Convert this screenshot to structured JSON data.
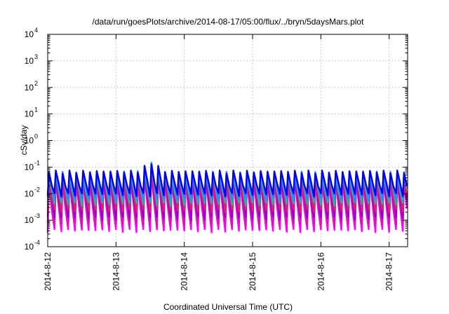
{
  "chart_data": {
    "type": "line",
    "title": "/data/run/goesPlots/archive/2014-08-17/05:00/flux/../bryn/5daysMars.plot",
    "xlabel": "Coordinated Universal Time (UTC)",
    "ylabel": "cSv/day",
    "x_range_days": [
      0,
      5.27
    ],
    "x_ticks": [
      {
        "day": 0,
        "label": "2014-8-12"
      },
      {
        "day": 1,
        "label": "2014-8-13"
      },
      {
        "day": 2,
        "label": "2014-8-14"
      },
      {
        "day": 3,
        "label": "2014-8-15"
      },
      {
        "day": 4,
        "label": "2014-8-16"
      },
      {
        "day": 5,
        "label": "2014-8-17"
      }
    ],
    "y_scale": "log",
    "ylim": [
      0.0001,
      10000
    ],
    "y_ticks": [
      {
        "value": 0.0001,
        "base": "10",
        "exp": "-4"
      },
      {
        "value": 0.001,
        "base": "10",
        "exp": "-3"
      },
      {
        "value": 0.01,
        "base": "10",
        "exp": "-2"
      },
      {
        "value": 0.1,
        "base": "10",
        "exp": "-1"
      },
      {
        "value": 1,
        "base": "10",
        "exp": "0"
      },
      {
        "value": 10,
        "base": "10",
        "exp": "1"
      },
      {
        "value": 100,
        "base": "10",
        "exp": "2"
      },
      {
        "value": 1000,
        "base": "10",
        "exp": "3"
      },
      {
        "value": 10000,
        "base": "10",
        "exp": "4"
      }
    ],
    "grid": true,
    "legend": "none",
    "pattern": {
      "cycle_days": 0.1,
      "cycles": 53,
      "note_peak_day": 1.5,
      "note_peak_value": 0.1
    },
    "series": [
      {
        "color": "#ff00ff",
        "peak": 0.03,
        "trough": 0.0004
      },
      {
        "color": "#d01aa0",
        "peak": 0.035,
        "trough": 0.0007
      },
      {
        "color": "#9400d3",
        "peak": 0.045,
        "trough": 0.0012
      },
      {
        "color": "#e0206a",
        "peak": 0.05,
        "trough": 0.0022
      },
      {
        "color": "#2ab0a0",
        "peak": 0.055,
        "trough": 0.004
      },
      {
        "color": "#1e90ff",
        "peak": 0.06,
        "trough": 0.006
      },
      {
        "color": "#0000ee",
        "peak": 0.065,
        "trough": 0.009
      }
    ]
  }
}
